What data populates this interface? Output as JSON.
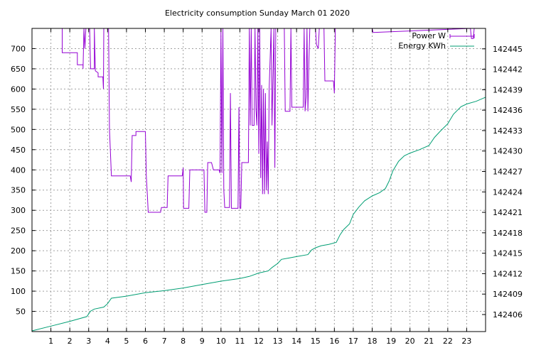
{
  "chart_data": {
    "type": "line",
    "title": "Electricity consumption Sunday March 01 2020",
    "grid": true,
    "legend_position": "top-right",
    "x_axis": {
      "range": [
        0,
        24
      ],
      "ticks": [
        1,
        2,
        3,
        4,
        5,
        6,
        7,
        8,
        9,
        10,
        11,
        12,
        13,
        14,
        15,
        16,
        17,
        18,
        19,
        20,
        21,
        22,
        23
      ],
      "tick_labels": [
        "1",
        "2",
        "3",
        "4",
        "5",
        "6",
        "7",
        "8",
        "9",
        "10",
        "11",
        "12",
        "13",
        "14",
        "15",
        "16",
        "17",
        "18",
        "19",
        "20",
        "21",
        "22",
        "23"
      ]
    },
    "y_axis_left": {
      "range": [
        0,
        750
      ],
      "ticks": [
        50,
        100,
        150,
        200,
        250,
        300,
        350,
        400,
        450,
        500,
        550,
        600,
        650,
        700
      ],
      "tick_labels": [
        "50",
        "100",
        "150",
        "200",
        "250",
        "300",
        "350",
        "400",
        "450",
        "500",
        "550",
        "600",
        "650",
        "700"
      ]
    },
    "y_axis_right": {
      "range": [
        142403.5,
        142448
      ],
      "ticks": [
        142406,
        142409,
        142412,
        142415,
        142418,
        142421,
        142424,
        142427,
        142430,
        142433,
        142436,
        142439,
        142442,
        142445
      ],
      "tick_labels": [
        "142406",
        "142409",
        "142412",
        "142415",
        "142418",
        "142421",
        "142424",
        "142427",
        "142430",
        "142433",
        "142436",
        "142439",
        "142442",
        "142445"
      ]
    },
    "series": [
      {
        "name": "Power W",
        "axis": "left",
        "color": "#9400d3",
        "points": [
          [
            1.6,
            750
          ],
          [
            1.6,
            690
          ],
          [
            2.4,
            690
          ],
          [
            2.4,
            660
          ],
          [
            2.7,
            660
          ],
          [
            2.7,
            650
          ],
          [
            2.75,
            750
          ],
          [
            2.8,
            700
          ],
          [
            2.85,
            750
          ],
          [
            2.95,
            750
          ],
          [
            3.05,
            750
          ],
          [
            3.1,
            650
          ],
          [
            3.3,
            650
          ],
          [
            3.3,
            750
          ],
          [
            3.35,
            645
          ],
          [
            3.5,
            640
          ],
          [
            3.5,
            630
          ],
          [
            3.75,
            630
          ],
          [
            3.78,
            600
          ],
          [
            3.8,
            750
          ],
          [
            3.9,
            750
          ],
          [
            4.05,
            750
          ],
          [
            4.1,
            500
          ],
          [
            4.2,
            385
          ],
          [
            5.2,
            385
          ],
          [
            5.25,
            370
          ],
          [
            5.3,
            485
          ],
          [
            5.5,
            485
          ],
          [
            5.5,
            495
          ],
          [
            6.0,
            495
          ],
          [
            6.05,
            385
          ],
          [
            6.1,
            340
          ],
          [
            6.15,
            295
          ],
          [
            6.8,
            295
          ],
          [
            6.85,
            307
          ],
          [
            7.15,
            307
          ],
          [
            7.2,
            385
          ],
          [
            7.95,
            385
          ],
          [
            8.0,
            405
          ],
          [
            8.02,
            305
          ],
          [
            8.3,
            305
          ],
          [
            8.35,
            400
          ],
          [
            9.1,
            400
          ],
          [
            9.15,
            295
          ],
          [
            9.25,
            295
          ],
          [
            9.3,
            418
          ],
          [
            9.5,
            418
          ],
          [
            9.6,
            400
          ],
          [
            9.9,
            400
          ],
          [
            9.95,
            392
          ],
          [
            10.0,
            750
          ],
          [
            10.05,
            392
          ],
          [
            10.1,
            750
          ],
          [
            10.15,
            350
          ],
          [
            10.2,
            307
          ],
          [
            10.45,
            307
          ],
          [
            10.5,
            590
          ],
          [
            10.55,
            305
          ],
          [
            10.9,
            305
          ],
          [
            10.95,
            555
          ],
          [
            11.0,
            305
          ],
          [
            11.05,
            305
          ],
          [
            11.1,
            418
          ],
          [
            11.45,
            418
          ],
          [
            11.5,
            750
          ],
          [
            11.55,
            510
          ],
          [
            11.6,
            750
          ],
          [
            11.65,
            510
          ],
          [
            11.75,
            510
          ],
          [
            11.8,
            750
          ],
          [
            11.85,
            550
          ],
          [
            11.9,
            510
          ],
          [
            11.95,
            750
          ],
          [
            12.0,
            440
          ],
          [
            12.05,
            750
          ],
          [
            12.1,
            380
          ],
          [
            12.15,
            610
          ],
          [
            12.2,
            340
          ],
          [
            12.25,
            600
          ],
          [
            12.3,
            340
          ],
          [
            12.35,
            590
          ],
          [
            12.4,
            350
          ],
          [
            12.45,
            470
          ],
          [
            12.5,
            340
          ],
          [
            12.55,
            600
          ],
          [
            12.65,
            750
          ],
          [
            12.7,
            510
          ],
          [
            12.8,
            750
          ],
          [
            12.85,
            405
          ],
          [
            12.9,
            750
          ],
          [
            13.35,
            750
          ],
          [
            13.4,
            545
          ],
          [
            13.65,
            545
          ],
          [
            13.7,
            750
          ],
          [
            13.75,
            555
          ],
          [
            14.35,
            555
          ],
          [
            14.4,
            750
          ],
          [
            14.45,
            545
          ],
          [
            14.5,
            580
          ],
          [
            14.55,
            750
          ],
          [
            14.6,
            545
          ],
          [
            14.65,
            660
          ],
          [
            14.7,
            750
          ],
          [
            15.0,
            750
          ],
          [
            15.05,
            710
          ],
          [
            15.15,
            700
          ],
          [
            15.2,
            750
          ],
          [
            15.45,
            750
          ],
          [
            15.5,
            620
          ],
          [
            15.95,
            620
          ],
          [
            16.0,
            590
          ],
          [
            16.05,
            750
          ],
          [
            18.0,
            750
          ],
          [
            18.05,
            740
          ],
          [
            23.2,
            750
          ],
          [
            23.25,
            725
          ],
          [
            23.35,
            725
          ],
          [
            23.4,
            750
          ]
        ]
      },
      {
        "name": "Energy KWh",
        "axis": "right",
        "color": "#009e73",
        "points": [
          [
            0,
            142403.6
          ],
          [
            1,
            142404.3
          ],
          [
            2,
            142405.0
          ],
          [
            2.9,
            142405.7
          ],
          [
            3.1,
            142406.5
          ],
          [
            3.3,
            142406.8
          ],
          [
            3.8,
            142407.1
          ],
          [
            4.0,
            142407.6
          ],
          [
            4.2,
            142408.4
          ],
          [
            5.0,
            142408.7
          ],
          [
            6.0,
            142409.2
          ],
          [
            7.0,
            142409.5
          ],
          [
            8.0,
            142409.9
          ],
          [
            9.0,
            142410.4
          ],
          [
            10.0,
            142410.9
          ],
          [
            11.0,
            142411.3
          ],
          [
            11.5,
            142411.6
          ],
          [
            12.0,
            142412.1
          ],
          [
            12.5,
            142412.4
          ],
          [
            12.7,
            142412.9
          ],
          [
            13.0,
            142413.5
          ],
          [
            13.2,
            142414.1
          ],
          [
            13.6,
            142414.3
          ],
          [
            14.0,
            142414.5
          ],
          [
            14.6,
            142414.8
          ],
          [
            14.8,
            142415.5
          ],
          [
            15.0,
            142415.8
          ],
          [
            15.3,
            142416.1
          ],
          [
            15.7,
            142416.3
          ],
          [
            16.1,
            142416.6
          ],
          [
            16.3,
            142417.7
          ],
          [
            16.5,
            142418.5
          ],
          [
            16.8,
            142419.3
          ],
          [
            17.0,
            142420.7
          ],
          [
            17.3,
            142421.8
          ],
          [
            17.6,
            142422.7
          ],
          [
            18.0,
            142423.4
          ],
          [
            18.4,
            142423.9
          ],
          [
            18.7,
            142424.5
          ],
          [
            18.9,
            142425.6
          ],
          [
            19.1,
            142427.1
          ],
          [
            19.4,
            142428.5
          ],
          [
            19.7,
            142429.3
          ],
          [
            20.0,
            142429.7
          ],
          [
            20.5,
            142430.2
          ],
          [
            21.0,
            142430.8
          ],
          [
            21.3,
            142432.0
          ],
          [
            21.6,
            142432.9
          ],
          [
            22.0,
            142434.0
          ],
          [
            22.3,
            142435.4
          ],
          [
            22.7,
            142436.5
          ],
          [
            23.0,
            142436.9
          ],
          [
            23.5,
            142437.3
          ],
          [
            24.0,
            142437.9
          ]
        ]
      }
    ]
  }
}
